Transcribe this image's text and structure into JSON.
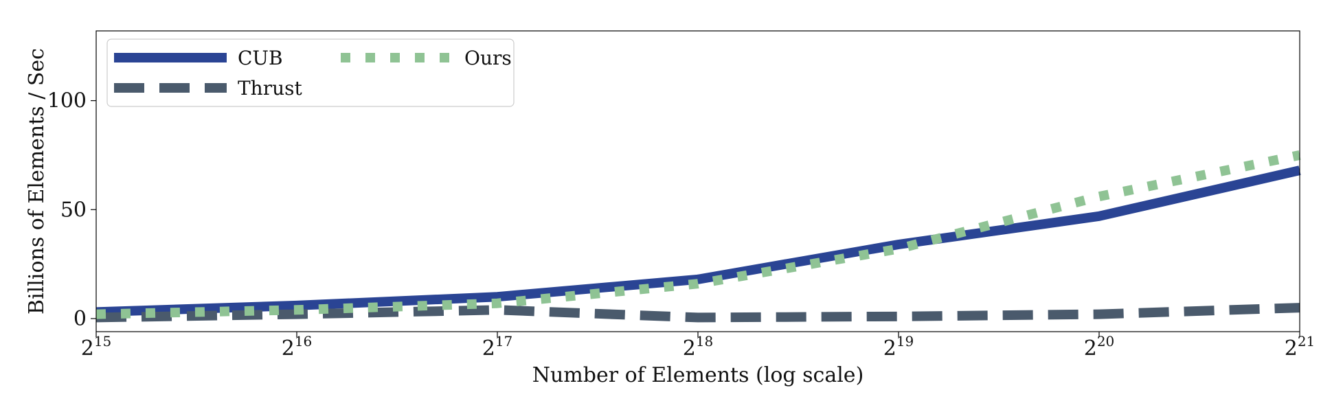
{
  "chart_data": {
    "type": "line",
    "xlabel": "Number of Elements (log scale)",
    "ylabel": "Billions of Elements / Sec",
    "x_scale": "log2",
    "x_ticks": [
      {
        "base": "2",
        "exp": "15",
        "value": 32768
      },
      {
        "base": "2",
        "exp": "16",
        "value": 65536
      },
      {
        "base": "2",
        "exp": "17",
        "value": 131072
      },
      {
        "base": "2",
        "exp": "18",
        "value": 262144
      },
      {
        "base": "2",
        "exp": "19",
        "value": 524288
      },
      {
        "base": "2",
        "exp": "20",
        "value": 1048576
      },
      {
        "base": "2",
        "exp": "21",
        "value": 2097152
      }
    ],
    "y_ticks": [
      "0",
      "50",
      "100"
    ],
    "xlim": [
      32768,
      2097152
    ],
    "ylim": [
      -6,
      132
    ],
    "legend": {
      "position": "top-left",
      "columns": 2
    },
    "x": [
      32768,
      65536,
      131072,
      262144,
      524288,
      1048576,
      2097152
    ],
    "series": [
      {
        "name": "CUB",
        "color": "#2a4494",
        "style": "solid",
        "values": [
          3,
          6,
          10,
          18,
          34,
          47,
          68
        ]
      },
      {
        "name": "Thrust",
        "color": "#4a5a6c",
        "style": "dashed",
        "values": [
          0.5,
          2,
          4,
          0.5,
          1,
          2,
          5
        ]
      },
      {
        "name": "Ours",
        "color": "#8fc394",
        "style": "dotted",
        "values": [
          2,
          4,
          7,
          16,
          32,
          56,
          75
        ]
      }
    ]
  }
}
